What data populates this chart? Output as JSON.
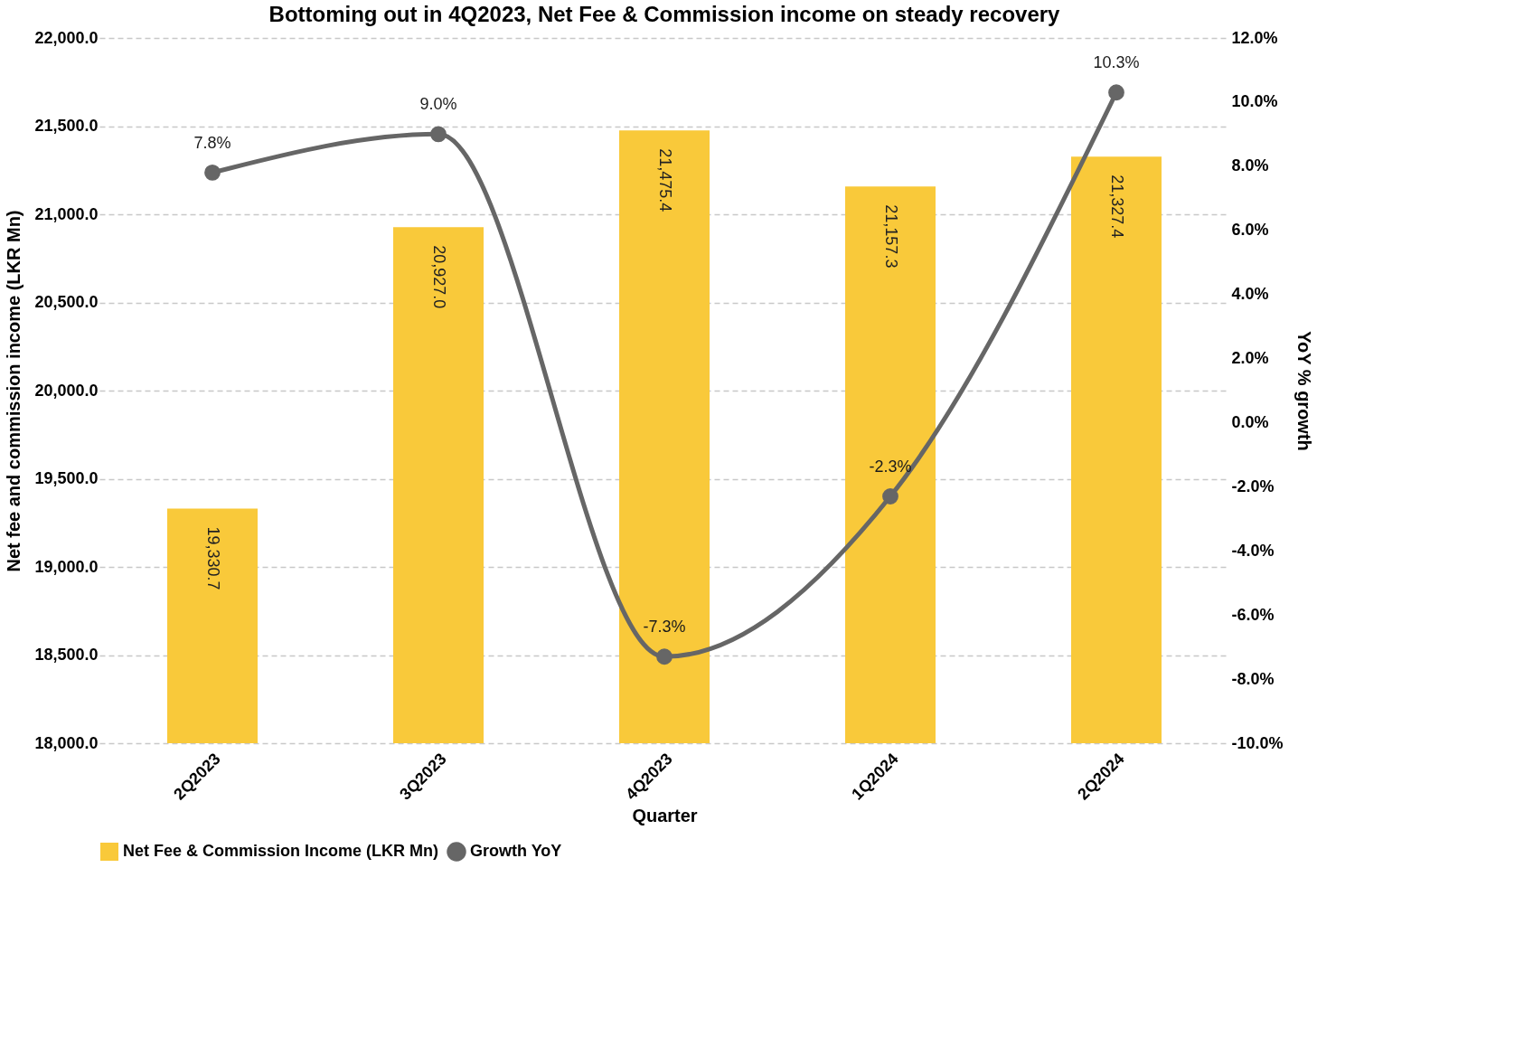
{
  "chart_data": {
    "type": "bar",
    "title": "Bottoming out in 4Q2023, Net Fee & Commission income on steady recovery",
    "xlabel": "Quarter",
    "ylabel": "Net fee and commission income (LKR Mn)",
    "y2label": "YoY % growth",
    "categories": [
      "2Q2023",
      "3Q2023",
      "4Q2023",
      "1Q2024",
      "2Q2024"
    ],
    "series": [
      {
        "name": "Net Fee & Commission Income (LKR Mn)",
        "color": "#f9c93a",
        "values": [
          19330.7,
          20927.0,
          21475.4,
          21157.3,
          21327.4
        ],
        "value_labels": [
          "19,330.7",
          "20,927.0",
          "21,475.4",
          "21,157.3",
          "21,327.4"
        ]
      },
      {
        "name": "Growth YoY",
        "type": "line",
        "axis": "y2",
        "color": "#666666",
        "marker": "circle",
        "values": [
          7.8,
          9.0,
          -7.3,
          -2.3,
          10.3
        ],
        "value_labels": [
          "7.8%",
          "9.0%",
          "-7.3%",
          "-2.3%",
          "10.3%"
        ]
      }
    ],
    "ylim": [
      18000,
      22000
    ],
    "yticks": [
      {
        "value": 18000,
        "label": "18,000.0"
      },
      {
        "value": 18500,
        "label": "18,500.0"
      },
      {
        "value": 19000,
        "label": "19,000.0"
      },
      {
        "value": 19500,
        "label": "19,500.0"
      },
      {
        "value": 20000,
        "label": "20,000.0"
      },
      {
        "value": 20500,
        "label": "20,500.0"
      },
      {
        "value": 21000,
        "label": "21,000.0"
      },
      {
        "value": 21500,
        "label": "21,500.0"
      },
      {
        "value": 22000,
        "label": "22,000.0"
      }
    ],
    "y2lim": [
      -10,
      12
    ],
    "y2ticks": [
      {
        "value": -10,
        "label": "-10.0%"
      },
      {
        "value": -8,
        "label": "-8.0%"
      },
      {
        "value": -6,
        "label": "-6.0%"
      },
      {
        "value": -4,
        "label": "-4.0%"
      },
      {
        "value": -2,
        "label": "-2.0%"
      },
      {
        "value": 0,
        "label": "0.0%"
      },
      {
        "value": 2,
        "label": "2.0%"
      },
      {
        "value": 4,
        "label": "4.0%"
      },
      {
        "value": 6,
        "label": "6.0%"
      },
      {
        "value": 8,
        "label": "8.0%"
      },
      {
        "value": 10,
        "label": "10.0%"
      },
      {
        "value": 12,
        "label": "12.0%"
      }
    ],
    "grid": "y",
    "legend": "bottom"
  }
}
